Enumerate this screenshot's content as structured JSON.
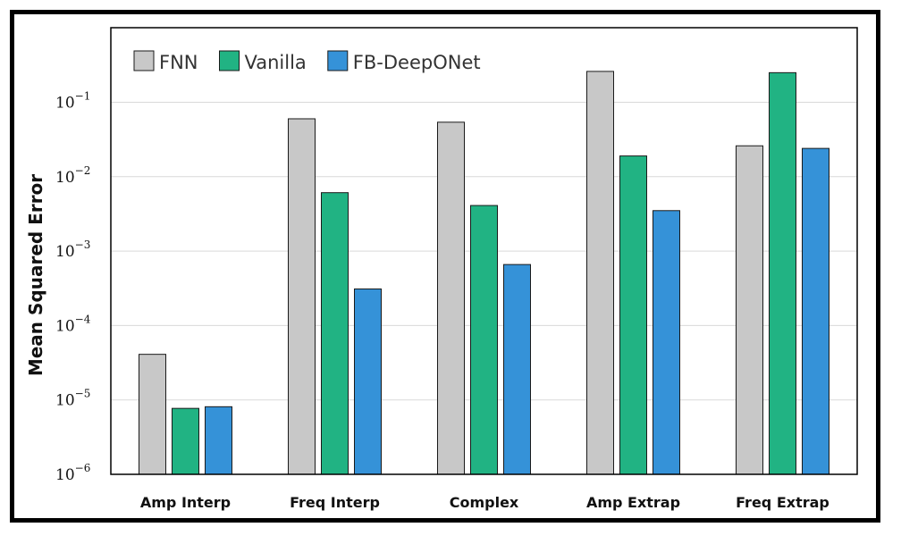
{
  "chart_data": {
    "type": "bar",
    "ylabel": "Mean Squared Error",
    "xlabel": "",
    "yscale": "log",
    "ylim": [
      1e-06,
      1
    ],
    "yticks": [
      {
        "base": "10",
        "exp": "−6",
        "value": 1e-06
      },
      {
        "base": "10",
        "exp": "−5",
        "value": 1e-05
      },
      {
        "base": "10",
        "exp": "−4",
        "value": 0.0001
      },
      {
        "base": "10",
        "exp": "−3",
        "value": 0.001
      },
      {
        "base": "10",
        "exp": "−2",
        "value": 0.01
      },
      {
        "base": "10",
        "exp": "−1",
        "value": 0.1
      }
    ],
    "grid": "horizontal",
    "legend_position": "top-left",
    "categories": [
      "Amp Interp",
      "Freq Interp",
      "Complex",
      "Amp Extrap",
      "Freq Extrap"
    ],
    "series": [
      {
        "name": "FNN",
        "color": "#c8c8c8",
        "values": [
          4.1e-05,
          0.06,
          0.054,
          0.26,
          0.026
        ]
      },
      {
        "name": "Vanilla",
        "color": "#21b383",
        "values": [
          7.7e-06,
          0.0061,
          0.0041,
          0.019,
          0.25
        ]
      },
      {
        "name": "FB-DeepONet",
        "color": "#3592d8",
        "values": [
          8.1e-06,
          0.00031,
          0.00066,
          0.0035,
          0.024
        ]
      }
    ]
  }
}
